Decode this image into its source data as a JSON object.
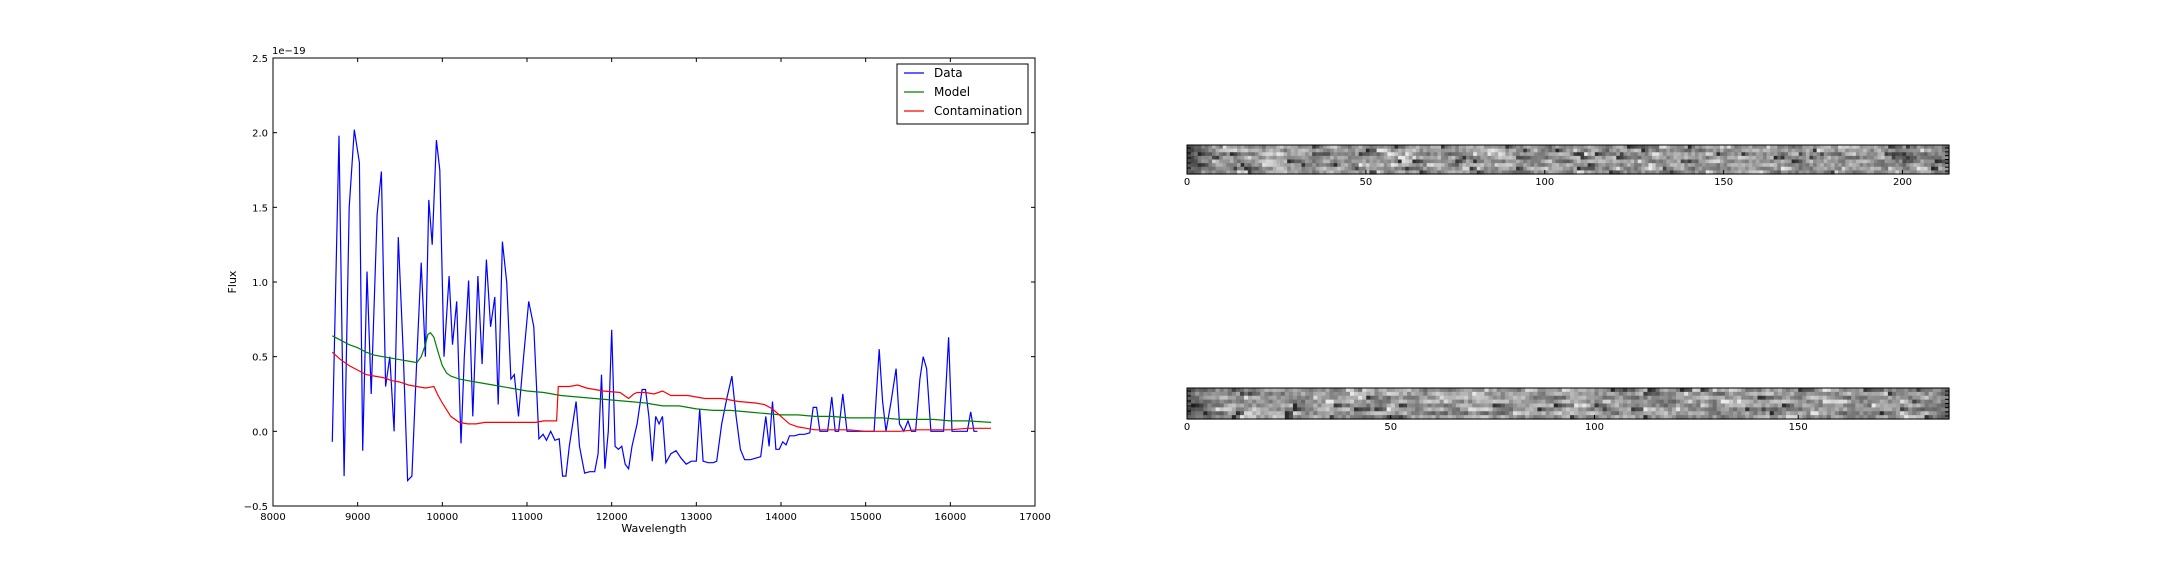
{
  "chart_data": [
    {
      "type": "line",
      "xlabel": "Wavelength",
      "ylabel": "Flux",
      "y_offset_label": "1e−19",
      "xlim": [
        8000,
        17000
      ],
      "ylim": [
        -0.5,
        2.5
      ],
      "xticks": [
        8000,
        9000,
        10000,
        11000,
        12000,
        13000,
        14000,
        15000,
        16000,
        17000
      ],
      "yticks": [
        -0.5,
        0.0,
        0.5,
        1.0,
        1.5,
        2.0,
        2.5
      ],
      "ytick_labels": [
        "−0.5",
        "0.0",
        "0.5",
        "1.0",
        "1.5",
        "2.0",
        "2.5"
      ],
      "legend_position": "top-right",
      "grid": false,
      "series": [
        {
          "name": "Data",
          "color": "#0000ff",
          "points": [
            [
              8700,
              -0.07
            ],
            [
              8780,
              1.98
            ],
            [
              8840,
              -0.3
            ],
            [
              8900,
              1.5
            ],
            [
              8960,
              2.02
            ],
            [
              9020,
              1.8
            ],
            [
              9060,
              -0.13
            ],
            [
              9110,
              1.07
            ],
            [
              9160,
              0.25
            ],
            [
              9230,
              1.45
            ],
            [
              9280,
              1.74
            ],
            [
              9330,
              0.3
            ],
            [
              9380,
              0.5
            ],
            [
              9430,
              0.0
            ],
            [
              9480,
              1.3
            ],
            [
              9540,
              0.5
            ],
            [
              9590,
              -0.33
            ],
            [
              9640,
              -0.3
            ],
            [
              9700,
              0.5
            ],
            [
              9750,
              1.13
            ],
            [
              9800,
              0.5
            ],
            [
              9840,
              1.55
            ],
            [
              9880,
              1.25
            ],
            [
              9930,
              1.95
            ],
            [
              9970,
              1.75
            ],
            [
              10020,
              0.5
            ],
            [
              10080,
              1.04
            ],
            [
              10120,
              0.58
            ],
            [
              10170,
              0.87
            ],
            [
              10220,
              -0.08
            ],
            [
              10260,
              0.5
            ],
            [
              10310,
              1.01
            ],
            [
              10360,
              0.1
            ],
            [
              10420,
              1.04
            ],
            [
              10470,
              0.45
            ],
            [
              10520,
              1.15
            ],
            [
              10570,
              0.7
            ],
            [
              10620,
              0.9
            ],
            [
              10660,
              0.18
            ],
            [
              10710,
              1.27
            ],
            [
              10760,
              1.0
            ],
            [
              10810,
              0.35
            ],
            [
              10850,
              0.38
            ],
            [
              10900,
              0.1
            ],
            [
              10960,
              0.5
            ],
            [
              11020,
              0.87
            ],
            [
              11080,
              0.7
            ],
            [
              11140,
              -0.05
            ],
            [
              11190,
              -0.02
            ],
            [
              11230,
              -0.06
            ],
            [
              11280,
              0.0
            ],
            [
              11330,
              -0.06
            ],
            [
              11380,
              -0.05
            ],
            [
              11420,
              -0.3
            ],
            [
              11460,
              -0.3
            ],
            [
              11500,
              -0.1
            ],
            [
              11540,
              0.05
            ],
            [
              11580,
              0.2
            ],
            [
              11620,
              -0.1
            ],
            [
              11680,
              -0.28
            ],
            [
              11740,
              -0.27
            ],
            [
              11800,
              -0.27
            ],
            [
              11840,
              -0.15
            ],
            [
              11880,
              0.38
            ],
            [
              11920,
              -0.25
            ],
            [
              11960,
              0.0
            ],
            [
              12000,
              0.68
            ],
            [
              12040,
              -0.1
            ],
            [
              12080,
              -0.12
            ],
            [
              12120,
              -0.1
            ],
            [
              12160,
              -0.22
            ],
            [
              12200,
              -0.25
            ],
            [
              12240,
              -0.1
            ],
            [
              12300,
              0.05
            ],
            [
              12360,
              0.28
            ],
            [
              12400,
              0.28
            ],
            [
              12440,
              0.1
            ],
            [
              12480,
              -0.2
            ],
            [
              12520,
              0.1
            ],
            [
              12560,
              0.05
            ],
            [
              12600,
              0.1
            ],
            [
              12640,
              -0.21
            ],
            [
              12700,
              -0.15
            ],
            [
              12760,
              -0.13
            ],
            [
              12820,
              -0.18
            ],
            [
              12880,
              -0.22
            ],
            [
              12940,
              -0.2
            ],
            [
              13000,
              -0.2
            ],
            [
              13040,
              0.15
            ],
            [
              13080,
              -0.2
            ],
            [
              13140,
              -0.21
            ],
            [
              13200,
              -0.21
            ],
            [
              13240,
              -0.2
            ],
            [
              13300,
              0.05
            ],
            [
              13360,
              0.22
            ],
            [
              13420,
              0.37
            ],
            [
              13470,
              0.1
            ],
            [
              13520,
              -0.12
            ],
            [
              13570,
              -0.19
            ],
            [
              13640,
              -0.19
            ],
            [
              13700,
              -0.18
            ],
            [
              13760,
              -0.17
            ],
            [
              13820,
              0.1
            ],
            [
              13860,
              -0.1
            ],
            [
              13900,
              0.2
            ],
            [
              13940,
              -0.12
            ],
            [
              13980,
              -0.12
            ],
            [
              14020,
              -0.07
            ],
            [
              14060,
              -0.09
            ],
            [
              14100,
              -0.03
            ],
            [
              14160,
              -0.03
            ],
            [
              14220,
              -0.02
            ],
            [
              14280,
              -0.02
            ],
            [
              14340,
              -0.01
            ],
            [
              14380,
              0.16
            ],
            [
              14420,
              0.16
            ],
            [
              14460,
              0.0
            ],
            [
              14500,
              0.0
            ],
            [
              14550,
              0.0
            ],
            [
              14600,
              0.23
            ],
            [
              14640,
              0.0
            ],
            [
              14680,
              0.0
            ],
            [
              14730,
              0.25
            ],
            [
              14780,
              0.0
            ],
            [
              14840,
              0.0
            ],
            [
              14900,
              0.0
            ],
            [
              14960,
              0.0
            ],
            [
              15020,
              0.0
            ],
            [
              15060,
              0.0
            ],
            [
              15100,
              0.0
            ],
            [
              15160,
              0.55
            ],
            [
              15200,
              0.2
            ],
            [
              15240,
              0.0
            ],
            [
              15300,
              0.2
            ],
            [
              15360,
              0.42
            ],
            [
              15400,
              0.05
            ],
            [
              15450,
              0.0
            ],
            [
              15500,
              0.07
            ],
            [
              15540,
              0.0
            ],
            [
              15590,
              0.0
            ],
            [
              15640,
              0.35
            ],
            [
              15680,
              0.5
            ],
            [
              15720,
              0.42
            ],
            [
              15770,
              0.0
            ],
            [
              15820,
              0.0
            ],
            [
              15860,
              0.0
            ],
            [
              15920,
              0.0
            ],
            [
              15980,
              0.63
            ],
            [
              16020,
              0.0
            ],
            [
              16080,
              0.0
            ],
            [
              16140,
              0.0
            ],
            [
              16200,
              0.0
            ],
            [
              16240,
              0.13
            ],
            [
              16280,
              0.0
            ],
            [
              16320,
              0.0
            ]
          ]
        },
        {
          "name": "Model",
          "color": "#008000",
          "points": [
            [
              8700,
              0.64
            ],
            [
              8800,
              0.61
            ],
            [
              8900,
              0.58
            ],
            [
              9000,
              0.56
            ],
            [
              9100,
              0.53
            ],
            [
              9200,
              0.51
            ],
            [
              9300,
              0.5
            ],
            [
              9400,
              0.49
            ],
            [
              9500,
              0.48
            ],
            [
              9600,
              0.47
            ],
            [
              9700,
              0.46
            ],
            [
              9750,
              0.5
            ],
            [
              9800,
              0.58
            ],
            [
              9830,
              0.65
            ],
            [
              9860,
              0.66
            ],
            [
              9900,
              0.63
            ],
            [
              9950,
              0.53
            ],
            [
              10000,
              0.44
            ],
            [
              10050,
              0.39
            ],
            [
              10100,
              0.37
            ],
            [
              10200,
              0.35
            ],
            [
              10400,
              0.33
            ],
            [
              10600,
              0.31
            ],
            [
              10800,
              0.29
            ],
            [
              11000,
              0.27
            ],
            [
              11200,
              0.26
            ],
            [
              11400,
              0.24
            ],
            [
              11600,
              0.23
            ],
            [
              11800,
              0.22
            ],
            [
              12000,
              0.21
            ],
            [
              12200,
              0.2
            ],
            [
              12400,
              0.19
            ],
            [
              12600,
              0.17
            ],
            [
              12800,
              0.17
            ],
            [
              13000,
              0.15
            ],
            [
              13200,
              0.14
            ],
            [
              13400,
              0.14
            ],
            [
              13600,
              0.13
            ],
            [
              13800,
              0.12
            ],
            [
              14000,
              0.11
            ],
            [
              14200,
              0.11
            ],
            [
              14400,
              0.1
            ],
            [
              14600,
              0.1
            ],
            [
              14800,
              0.09
            ],
            [
              15000,
              0.09
            ],
            [
              15200,
              0.09
            ],
            [
              15400,
              0.08
            ],
            [
              15600,
              0.08
            ],
            [
              15800,
              0.08
            ],
            [
              16000,
              0.07
            ],
            [
              16200,
              0.07
            ],
            [
              16480,
              0.06
            ]
          ]
        },
        {
          "name": "Contamination",
          "color": "#ff0000",
          "points": [
            [
              8700,
              0.53
            ],
            [
              8800,
              0.48
            ],
            [
              8900,
              0.44
            ],
            [
              9000,
              0.41
            ],
            [
              9100,
              0.38
            ],
            [
              9200,
              0.37
            ],
            [
              9300,
              0.36
            ],
            [
              9400,
              0.34
            ],
            [
              9500,
              0.33
            ],
            [
              9600,
              0.31
            ],
            [
              9700,
              0.3
            ],
            [
              9800,
              0.29
            ],
            [
              9900,
              0.3
            ],
            [
              9950,
              0.24
            ],
            [
              10000,
              0.19
            ],
            [
              10100,
              0.1
            ],
            [
              10200,
              0.06
            ],
            [
              10300,
              0.05
            ],
            [
              10400,
              0.05
            ],
            [
              10500,
              0.06
            ],
            [
              10700,
              0.06
            ],
            [
              10900,
              0.06
            ],
            [
              11100,
              0.06
            ],
            [
              11200,
              0.07
            ],
            [
              11350,
              0.07
            ],
            [
              11370,
              0.3
            ],
            [
              11500,
              0.3
            ],
            [
              11600,
              0.31
            ],
            [
              11700,
              0.29
            ],
            [
              11900,
              0.27
            ],
            [
              12100,
              0.26
            ],
            [
              12200,
              0.22
            ],
            [
              12260,
              0.25
            ],
            [
              12300,
              0.26
            ],
            [
              12400,
              0.26
            ],
            [
              12500,
              0.25
            ],
            [
              12600,
              0.27
            ],
            [
              12700,
              0.24
            ],
            [
              12900,
              0.24
            ],
            [
              13100,
              0.22
            ],
            [
              13300,
              0.22
            ],
            [
              13500,
              0.2
            ],
            [
              13700,
              0.19
            ],
            [
              13800,
              0.18
            ],
            [
              13900,
              0.15
            ],
            [
              14000,
              0.1
            ],
            [
              14100,
              0.05
            ],
            [
              14200,
              0.03
            ],
            [
              14300,
              0.02
            ],
            [
              14400,
              0.01
            ],
            [
              14600,
              0.01
            ],
            [
              14800,
              0.01
            ],
            [
              15000,
              0.0
            ],
            [
              15200,
              0.0
            ],
            [
              15400,
              0.0
            ],
            [
              15600,
              0.01
            ],
            [
              15800,
              0.01
            ],
            [
              16000,
              0.01
            ],
            [
              16200,
              0.02
            ],
            [
              16480,
              0.02
            ]
          ]
        }
      ]
    },
    {
      "type": "heatmap",
      "colormap": "gray",
      "xticks": [
        0,
        50,
        100,
        150,
        200
      ],
      "xlim": [
        0,
        213
      ],
      "rows": 8,
      "seed": 11
    },
    {
      "type": "heatmap",
      "colormap": "gray",
      "xticks": [
        0,
        50,
        100,
        150
      ],
      "xlim": [
        0,
        187
      ],
      "rows": 8,
      "seed": 29
    }
  ]
}
